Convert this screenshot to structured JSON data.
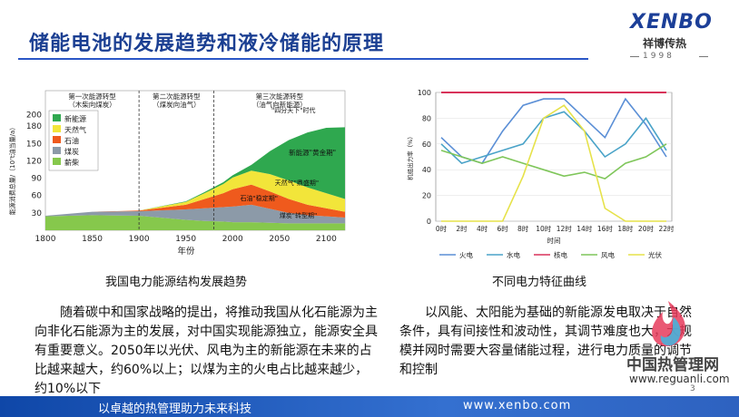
{
  "slide": {
    "title": "储能电池的发展趋势和液冷储能的原理",
    "logo": {
      "main": "XENBO",
      "sub": "祥博传热",
      "year": "1998"
    },
    "left_caption": "我国电力能源结构发展趋势",
    "right_caption": "不同电力特征曲线",
    "left_paragraph": "随着碳中和国家战略的提出，将推动我国从化石能源为主向非化石能源为主的发展，对中国实现能源独立，能源安全具有重要意义。2050年以光伏、风电为主的新能源在未来的占比越来越大，约60%以上；以煤为主的火电占比越来越少，约10%以下",
    "right_paragraph": "以风能、太阳能为基础的新能源发电取决于自然条件，具有间接性和波动性，其调节难度也大，大规模并网时需要大容量储能过程，进行电力质量的调节和控制",
    "footer_left": "以卓越的热管理助力未来科技",
    "footer_right": "www.xenbo.com",
    "watermark": "中国热管理网",
    "watermark_url": "www.reguanli.com",
    "page_number": "3"
  },
  "chart_data": [
    {
      "type": "area",
      "ylabel": "能源消费总量/（10⁷t油当量/a）",
      "xlabel": "年份",
      "x_ticks": [
        "1800",
        "1850",
        "1900",
        "1950",
        "2000",
        "2050",
        "2100"
      ],
      "y_ticks": [
        "30",
        "60",
        "90",
        "120",
        "150",
        "180",
        "200"
      ],
      "xlim": [
        1800,
        2120
      ],
      "ylim": [
        0,
        210
      ],
      "era_labels": [
        {
          "line1": "第一次能源转型",
          "line2": "（木柴向煤炭）"
        },
        {
          "line1": "第二次能源转型",
          "line2": "（煤炭向油气）"
        },
        {
          "line1": "第三次能源转型",
          "line2": "（油气向新能源）"
        }
      ],
      "era_boundaries": [
        1900,
        1980
      ],
      "legend": [
        "新能源",
        "天然气",
        "石油",
        "煤炭",
        "薪柴"
      ],
      "legend_position": "top-left",
      "colors": {
        "新能源": "#2fa84f",
        "天然气": "#f2e53a",
        "石油": "#ef5a1d",
        "煤炭": "#8c9aa8",
        "薪柴": "#86c84c"
      },
      "series": [
        {
          "name": "薪柴",
          "x": [
            1800,
            1850,
            1900,
            1950,
            1970,
            1990,
            2000,
            2020,
            2040,
            2060,
            2080,
            2100,
            2120
          ],
          "values": [
            24,
            26,
            25,
            18,
            16,
            15,
            14,
            14,
            13,
            12,
            12,
            12,
            12
          ]
        },
        {
          "name": "煤炭",
          "x": [
            1800,
            1850,
            1900,
            1950,
            1970,
            1990,
            2000,
            2020,
            2040,
            2060,
            2080,
            2100,
            2120
          ],
          "values": [
            1,
            6,
            8,
            18,
            22,
            25,
            27,
            30,
            24,
            18,
            14,
            12,
            10
          ]
        },
        {
          "name": "石油",
          "x": [
            1800,
            1850,
            1900,
            1950,
            1970,
            1990,
            2000,
            2020,
            2040,
            2060,
            2080,
            2100,
            2120
          ],
          "values": [
            0,
            0,
            1,
            8,
            16,
            24,
            30,
            35,
            30,
            24,
            18,
            14,
            10
          ]
        },
        {
          "name": "天然气",
          "x": [
            1800,
            1850,
            1900,
            1950,
            1970,
            1990,
            2000,
            2020,
            2040,
            2060,
            2080,
            2100,
            2120
          ],
          "values": [
            0,
            0,
            0,
            5,
            10,
            16,
            20,
            24,
            30,
            32,
            30,
            26,
            22
          ]
        },
        {
          "name": "新能源",
          "x": [
            1800,
            1850,
            1900,
            1950,
            1970,
            1990,
            2000,
            2020,
            2040,
            2060,
            2080,
            2100,
            2120
          ],
          "values": [
            0,
            0,
            0,
            1,
            2,
            3,
            4,
            10,
            40,
            70,
            95,
            113,
            124
          ]
        }
      ],
      "annotations": [
        "\"四分天下\"时代",
        "新能源\"黄金期\"",
        "天然气\"鼎盛期\"",
        "石油\"稳定期\"",
        "煤炭\"转型期\""
      ]
    },
    {
      "type": "line",
      "ylabel": "机组出力率（%）",
      "xlabel": "时间",
      "x": [
        "0时",
        "2时",
        "4时",
        "6时",
        "8时",
        "10时",
        "12时",
        "14时",
        "16时",
        "18时",
        "20时",
        "22时"
      ],
      "y_ticks": [
        "0",
        "20",
        "40",
        "60",
        "80",
        "100"
      ],
      "ylim": [
        0,
        100
      ],
      "legend_position": "bottom",
      "series": [
        {
          "name": "火电",
          "color": "#5b8fd6",
          "values": [
            65,
            50,
            45,
            70,
            90,
            95,
            95,
            80,
            65,
            95,
            75,
            50
          ]
        },
        {
          "name": "水电",
          "color": "#4aa3c8",
          "values": [
            60,
            45,
            50,
            55,
            60,
            80,
            85,
            70,
            50,
            60,
            80,
            55
          ]
        },
        {
          "name": "核电",
          "color": "#d8325a",
          "values": [
            100,
            100,
            100,
            100,
            100,
            100,
            100,
            100,
            100,
            100,
            100,
            100
          ]
        },
        {
          "name": "风电",
          "color": "#7fc65a",
          "values": [
            55,
            50,
            45,
            50,
            45,
            40,
            35,
            38,
            33,
            45,
            50,
            60
          ]
        },
        {
          "name": "光伏",
          "color": "#e6e24a",
          "values": [
            0,
            0,
            0,
            0,
            35,
            80,
            90,
            70,
            10,
            0,
            0,
            0
          ]
        }
      ]
    }
  ]
}
